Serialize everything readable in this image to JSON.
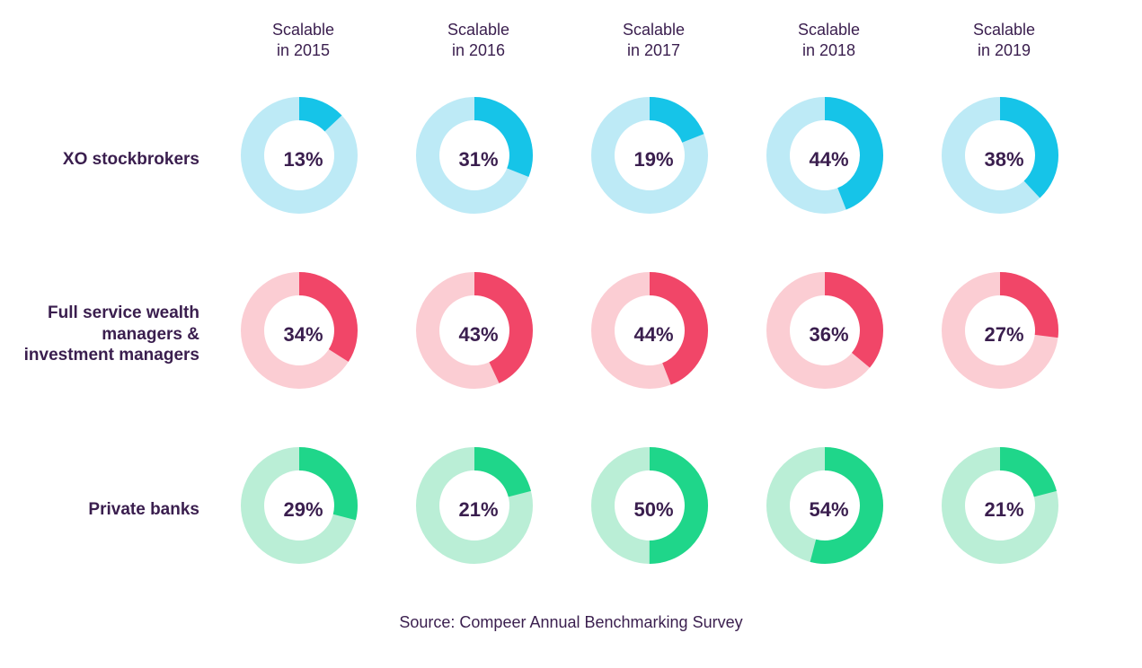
{
  "type": "donut-grid",
  "background_color": "#ffffff",
  "text_color": "#3a1e4e",
  "header_fontsize": 18,
  "row_label_fontsize": 19,
  "value_fontsize": 22,
  "donut": {
    "outer_radius": 65,
    "thickness": 26,
    "start_angle_deg": 0
  },
  "columns": [
    {
      "line1": "Scalable",
      "line2": "in 2015"
    },
    {
      "line1": "Scalable",
      "line2": "in 2016"
    },
    {
      "line1": "Scalable",
      "line2": "in 2017"
    },
    {
      "line1": "Scalable",
      "line2": "in 2018"
    },
    {
      "line1": "Scalable",
      "line2": "in 2019"
    }
  ],
  "rows": [
    {
      "label": "XO stockbrokers",
      "track_color": "#bdeaf6",
      "fill_color": "#16c4e8",
      "values": [
        13,
        31,
        19,
        44,
        38
      ]
    },
    {
      "label": "Full service wealth managers & investment managers",
      "track_color": "#fbcdd3",
      "fill_color": "#f14668",
      "values": [
        34,
        43,
        44,
        36,
        27
      ]
    },
    {
      "label": "Private banks",
      "track_color": "#baeed6",
      "fill_color": "#1fd68a",
      "values": [
        29,
        21,
        50,
        54,
        21
      ]
    }
  ],
  "source": "Source: Compeer Annual Benchmarking Survey"
}
